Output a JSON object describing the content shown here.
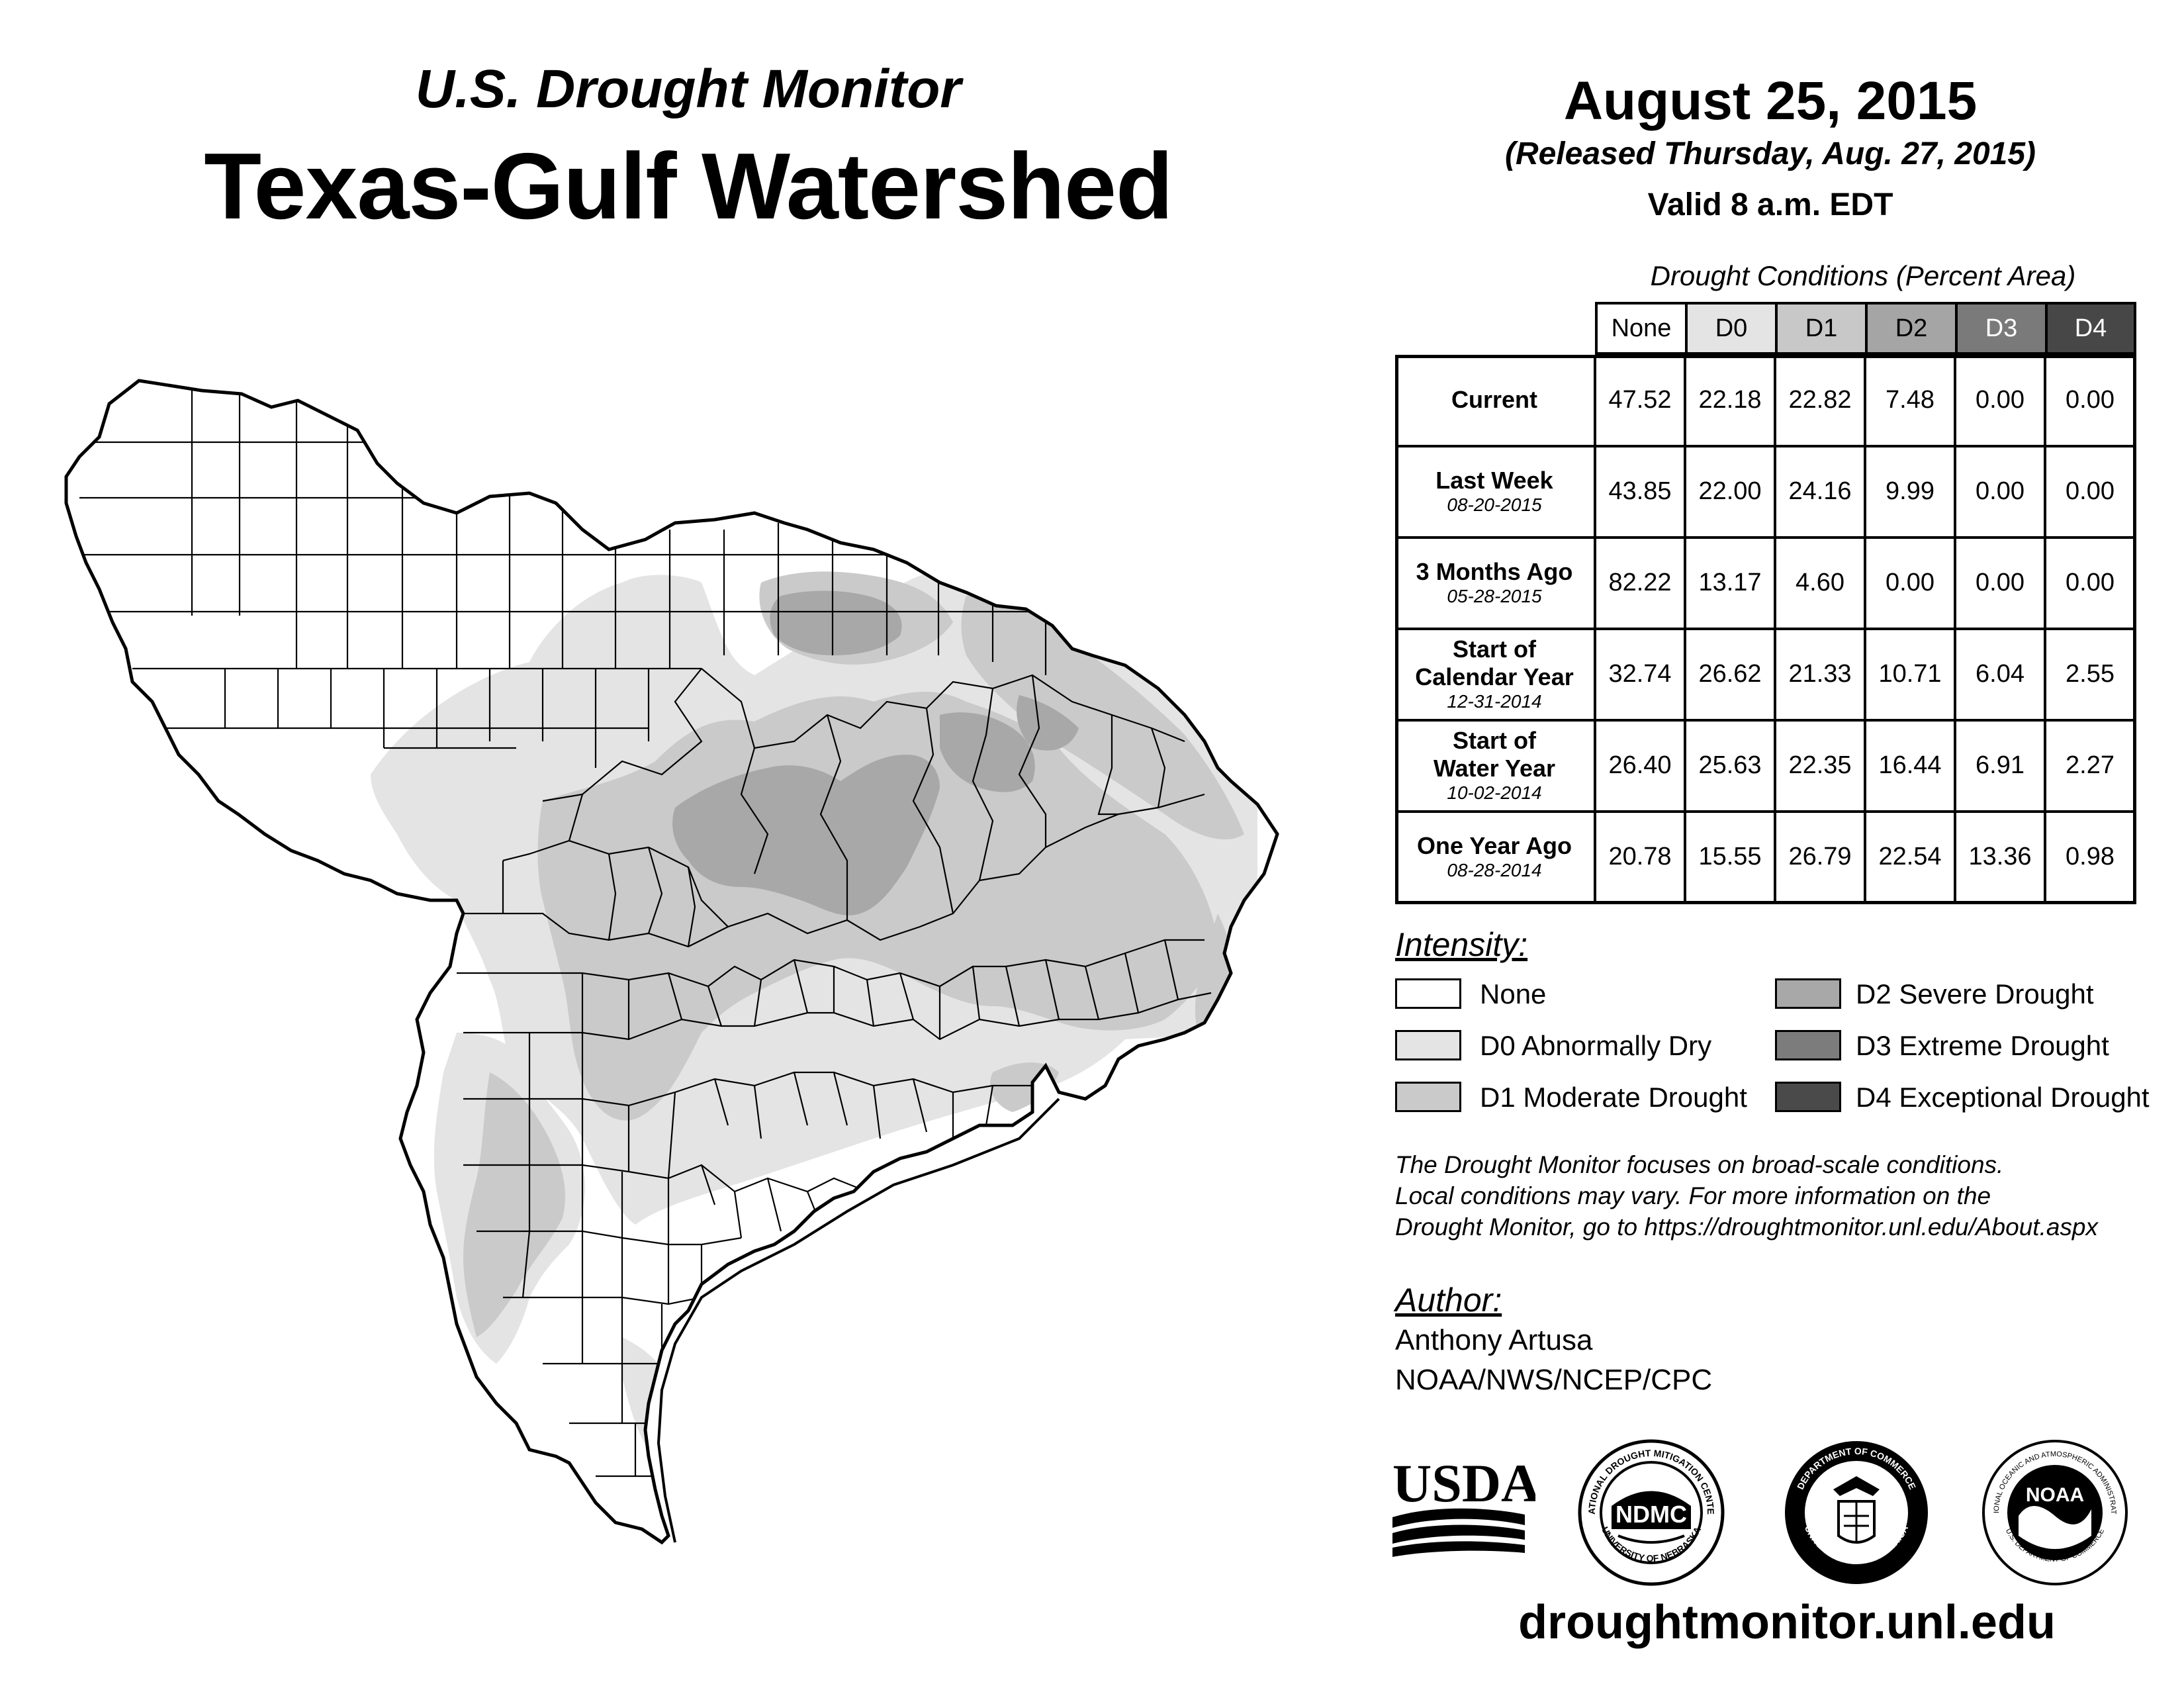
{
  "header": {
    "subtitle": "U.S. Drought Monitor",
    "title": "Texas-Gulf Watershed",
    "date": "August 25, 2015",
    "released": "(Released Thursday, Aug. 27, 2015)",
    "valid": "Valid 8 a.m. EDT"
  },
  "table": {
    "caption": "Drought Conditions (Percent Area)",
    "columns": [
      "None",
      "D0",
      "D1",
      "D2",
      "D3",
      "D4"
    ],
    "rows": [
      {
        "label": "Current",
        "sublabel": "",
        "values": [
          "47.52",
          "22.18",
          "22.82",
          "7.48",
          "0.00",
          "0.00"
        ]
      },
      {
        "label": "Last Week",
        "sublabel": "08-20-2015",
        "values": [
          "43.85",
          "22.00",
          "24.16",
          "9.99",
          "0.00",
          "0.00"
        ]
      },
      {
        "label": "3 Months Ago",
        "sublabel": "05-28-2015",
        "values": [
          "82.22",
          "13.17",
          "4.60",
          "0.00",
          "0.00",
          "0.00"
        ]
      },
      {
        "label": "Start of Calendar Year",
        "sublabel": "12-31-2014",
        "values": [
          "32.74",
          "26.62",
          "21.33",
          "10.71",
          "6.04",
          "2.55"
        ]
      },
      {
        "label": "Start of Water Year",
        "sublabel": "10-02-2014",
        "values": [
          "26.40",
          "25.63",
          "22.35",
          "16.44",
          "6.91",
          "2.27"
        ]
      },
      {
        "label": "One Year Ago",
        "sublabel": "08-28-2014",
        "values": [
          "20.78",
          "15.55",
          "26.79",
          "22.54",
          "13.36",
          "0.98"
        ]
      }
    ]
  },
  "legend": {
    "title": "Intensity:",
    "items": [
      {
        "label": "None",
        "color": "#ffffff"
      },
      {
        "label": "D0 Abnormally Dry",
        "color": "#e4e4e4"
      },
      {
        "label": "D1 Moderate Drought",
        "color": "#cacaca"
      },
      {
        "label": "D2 Severe Drought",
        "color": "#a8a8a8"
      },
      {
        "label": "D3 Extreme Drought",
        "color": "#7c7c7c"
      },
      {
        "label": "D4 Exceptional Drought",
        "color": "#4a4a4a"
      }
    ]
  },
  "note": [
    "The Drought Monitor focuses on broad-scale conditions.",
    "Local conditions may vary. For more information on the",
    "Drought Monitor, go to https://droughtmonitor.unl.edu/About.aspx"
  ],
  "author": {
    "label": "Author:",
    "name": "Anthony Artusa",
    "org": "NOAA/NWS/NCEP/CPC"
  },
  "logos": {
    "usda": "USDA",
    "ndmc": "NDMC",
    "ndmc_ring_top": "NATIONAL DROUGHT MITIGATION CENTER",
    "ndmc_ring_bottom": "UNIVERSITY OF NEBRASKA",
    "doc_ring_top": "DEPARTMENT OF COMMERCE",
    "doc_ring_bottom": "UNITED STATES OF AMERICA",
    "noaa": "NOAA",
    "noaa_ring_top": "NATIONAL OCEANIC AND ATMOSPHERIC ADMINISTRATION",
    "noaa_ring_bottom": "U.S. DEPARTMENT OF COMMERCE"
  },
  "website": "droughtmonitor.unl.edu",
  "colors": {
    "header_none": "#ffffff",
    "header_d0": "#e4e4e4",
    "header_d1": "#c8c8c8",
    "header_d2": "#a5a5a5",
    "header_d3": "#7a7a7a",
    "header_d4": "#474747"
  }
}
